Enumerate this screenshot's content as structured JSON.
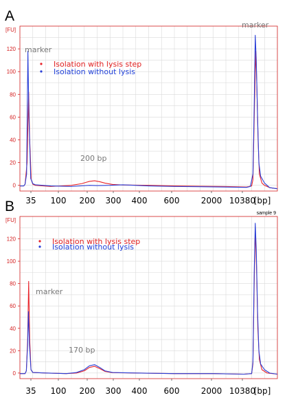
{
  "colors": {
    "red": "#e8232a",
    "blue": "#2a3fd6",
    "grid": "#d9d9d9",
    "frame": "#d42020",
    "tickLabel": "#d42020"
  },
  "panels": [
    {
      "letter": "A",
      "yunit": "[FU]",
      "corner_label": "",
      "annotations": [
        {
          "text": "marker",
          "at": "left-peak"
        },
        {
          "text": "marker",
          "at": "right-peak"
        },
        {
          "text": "200 bp",
          "at": "200"
        }
      ]
    },
    {
      "letter": "B",
      "yunit": "[FU]",
      "corner_label": "sample 9",
      "annotations": [
        {
          "text": "marker",
          "at": "left-peak"
        },
        {
          "text": "170 bp",
          "at": "170"
        }
      ]
    }
  ],
  "chart_data": [
    {
      "type": "line",
      "title": "",
      "xlabel": "",
      "ylabel": "[FU]",
      "ylim": [
        -5,
        140
      ],
      "yticks": [
        0,
        20,
        40,
        60,
        80,
        100,
        120
      ],
      "xticks": [
        "35",
        "100",
        "200",
        "300",
        "400",
        "600",
        "2000",
        "10380",
        "[bp]"
      ],
      "legend_position": "top-left",
      "series": [
        {
          "name": "Isolation with lysis step",
          "color": "#e8232a",
          "points": [
            [
              0,
              -0.5
            ],
            [
              0.015,
              -0.5
            ],
            [
              0.02,
              1
            ],
            [
              0.028,
              20
            ],
            [
              0.034,
              82
            ],
            [
              0.038,
              40
            ],
            [
              0.044,
              5
            ],
            [
              0.05,
              1
            ],
            [
              0.06,
              0
            ],
            [
              0.12,
              -1
            ],
            [
              0.2,
              0
            ],
            [
              0.24,
              1.5
            ],
            [
              0.27,
              3.5
            ],
            [
              0.29,
              4
            ],
            [
              0.31,
              3.2
            ],
            [
              0.33,
              2
            ],
            [
              0.36,
              0.8
            ],
            [
              0.4,
              0.3
            ],
            [
              0.5,
              0
            ],
            [
              0.6,
              -0.5
            ],
            [
              0.7,
              -0.8
            ],
            [
              0.8,
              -1
            ],
            [
              0.88,
              -1.5
            ],
            [
              0.89,
              -1
            ],
            [
              0.9,
              -0.5
            ],
            [
              0.905,
              5
            ],
            [
              0.912,
              80
            ],
            [
              0.916,
              118
            ],
            [
              0.92,
              90
            ],
            [
              0.925,
              40
            ],
            [
              0.93,
              10
            ],
            [
              0.94,
              2
            ],
            [
              0.95,
              0
            ],
            [
              0.97,
              -2
            ],
            [
              1.0,
              -3
            ]
          ]
        },
        {
          "name": "Isolation without lysis",
          "color": "#2a3fd6",
          "points": [
            [
              0,
              -0.5
            ],
            [
              0.015,
              -0.5
            ],
            [
              0.02,
              1
            ],
            [
              0.026,
              10
            ],
            [
              0.031,
              118
            ],
            [
              0.035,
              60
            ],
            [
              0.042,
              6
            ],
            [
              0.05,
              1.5
            ],
            [
              0.06,
              0.5
            ],
            [
              0.12,
              -0.5
            ],
            [
              0.2,
              -1
            ],
            [
              0.27,
              0
            ],
            [
              0.3,
              -0.2
            ],
            [
              0.35,
              0
            ],
            [
              0.4,
              0.5
            ],
            [
              0.5,
              -0.5
            ],
            [
              0.6,
              -1
            ],
            [
              0.7,
              -1.2
            ],
            [
              0.8,
              -1.5
            ],
            [
              0.88,
              -1.8
            ],
            [
              0.895,
              -1
            ],
            [
              0.905,
              10
            ],
            [
              0.91,
              70
            ],
            [
              0.914,
              132
            ],
            [
              0.918,
              110
            ],
            [
              0.923,
              60
            ],
            [
              0.928,
              20
            ],
            [
              0.935,
              8
            ],
            [
              0.95,
              2
            ],
            [
              0.97,
              -2
            ],
            [
              1.0,
              -3
            ]
          ]
        }
      ]
    },
    {
      "type": "line",
      "title": "",
      "xlabel": "",
      "ylabel": "[FU]",
      "ylim": [
        -5,
        140
      ],
      "yticks": [
        0,
        20,
        40,
        60,
        80,
        100,
        120
      ],
      "xticks": [
        "35",
        "100",
        "200",
        "300",
        "400",
        "600",
        "2000",
        "10380",
        "[bp]"
      ],
      "legend_position": "top-left",
      "series": [
        {
          "name": "Isolation with lysis step",
          "color": "#e8232a",
          "points": [
            [
              0,
              -0.5
            ],
            [
              0.02,
              -0.5
            ],
            [
              0.025,
              2
            ],
            [
              0.03,
              30
            ],
            [
              0.034,
              82
            ],
            [
              0.038,
              30
            ],
            [
              0.043,
              3
            ],
            [
              0.05,
              0.5
            ],
            [
              0.1,
              0
            ],
            [
              0.18,
              -0.5
            ],
            [
              0.22,
              0
            ],
            [
              0.25,
              2
            ],
            [
              0.27,
              5
            ],
            [
              0.29,
              6
            ],
            [
              0.31,
              4
            ],
            [
              0.33,
              1.5
            ],
            [
              0.36,
              0.3
            ],
            [
              0.45,
              0
            ],
            [
              0.6,
              -0.5
            ],
            [
              0.75,
              -0.5
            ],
            [
              0.87,
              -1
            ],
            [
              0.9,
              -0.5
            ],
            [
              0.905,
              8
            ],
            [
              0.91,
              80
            ],
            [
              0.914,
              128
            ],
            [
              0.919,
              95
            ],
            [
              0.924,
              40
            ],
            [
              0.93,
              12
            ],
            [
              0.94,
              3
            ],
            [
              0.96,
              0
            ],
            [
              1.0,
              -1
            ]
          ]
        },
        {
          "name": "Isolation without lysis",
          "color": "#2a3fd6",
          "points": [
            [
              0,
              -0.5
            ],
            [
              0.02,
              -0.5
            ],
            [
              0.025,
              2
            ],
            [
              0.03,
              25
            ],
            [
              0.033,
              55
            ],
            [
              0.037,
              25
            ],
            [
              0.043,
              3
            ],
            [
              0.05,
              0.5
            ],
            [
              0.1,
              0
            ],
            [
              0.18,
              -0.5
            ],
            [
              0.22,
              0.5
            ],
            [
              0.25,
              3
            ],
            [
              0.27,
              6.5
            ],
            [
              0.29,
              7.5
            ],
            [
              0.31,
              5
            ],
            [
              0.33,
              2
            ],
            [
              0.36,
              0.5
            ],
            [
              0.45,
              0
            ],
            [
              0.6,
              -0.5
            ],
            [
              0.75,
              -0.5
            ],
            [
              0.87,
              -1
            ],
            [
              0.9,
              -0.5
            ],
            [
              0.905,
              10
            ],
            [
              0.91,
              90
            ],
            [
              0.914,
              134
            ],
            [
              0.918,
              110
            ],
            [
              0.923,
              55
            ],
            [
              0.928,
              20
            ],
            [
              0.935,
              8
            ],
            [
              0.95,
              3
            ],
            [
              0.97,
              0
            ],
            [
              1.0,
              -1
            ]
          ]
        }
      ]
    }
  ]
}
